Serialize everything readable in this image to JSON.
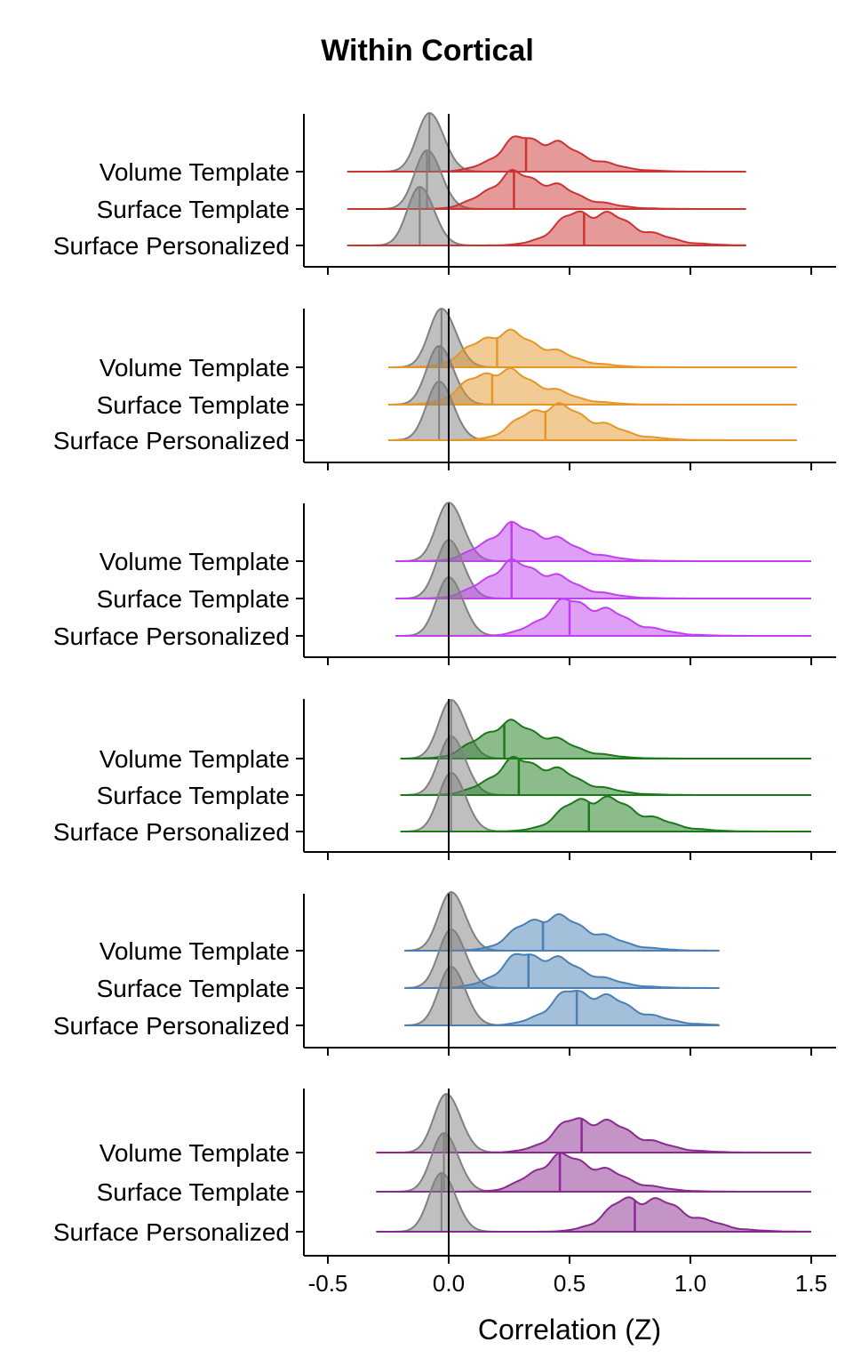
{
  "chart_data": {
    "type": "ridgeline",
    "title": "Within Cortical",
    "xlabel": "Correlation (Z)",
    "ylabel": "",
    "xlim": [
      -0.6,
      1.6
    ],
    "xticks": [
      -0.5,
      0.0,
      0.5,
      1.0,
      1.5
    ],
    "xtick_labels": [
      "-0.5",
      "0.0",
      "0.5",
      "1.0",
      "1.5"
    ],
    "row_labels": [
      "Volume Template",
      "Surface Template",
      "Surface Personalized"
    ],
    "null_color": "#808080",
    "reference_line_x": 0.0,
    "panels": [
      {
        "color": "#cc3333",
        "range": [
          -0.42,
          1.23
        ],
        "rows": [
          {
            "label": "Volume Template",
            "median": 0.32,
            "null_median": -0.08
          },
          {
            "label": "Surface Template",
            "median": 0.27,
            "null_median": -0.09
          },
          {
            "label": "Surface Personalized",
            "median": 0.56,
            "null_median": -0.12
          }
        ]
      },
      {
        "color": "#e69628",
        "range": [
          -0.25,
          1.44
        ],
        "rows": [
          {
            "label": "Volume Template",
            "median": 0.2,
            "null_median": -0.03
          },
          {
            "label": "Surface Template",
            "median": 0.18,
            "null_median": -0.04
          },
          {
            "label": "Surface Personalized",
            "median": 0.4,
            "null_median": -0.04
          }
        ]
      },
      {
        "color": "#c040f0",
        "range": [
          -0.22,
          1.5
        ],
        "rows": [
          {
            "label": "Volume Template",
            "median": 0.26,
            "null_median": 0.0
          },
          {
            "label": "Surface Template",
            "median": 0.26,
            "null_median": 0.0
          },
          {
            "label": "Surface Personalized",
            "median": 0.5,
            "null_median": 0.0
          }
        ]
      },
      {
        "color": "#1a7a1a",
        "range": [
          -0.2,
          1.5
        ],
        "rows": [
          {
            "label": "Volume Template",
            "median": 0.23,
            "null_median": 0.01
          },
          {
            "label": "Surface Template",
            "median": 0.29,
            "null_median": 0.01
          },
          {
            "label": "Surface Personalized",
            "median": 0.58,
            "null_median": 0.01
          }
        ]
      },
      {
        "color": "#4a7fb5",
        "range": [
          -0.18,
          1.12
        ],
        "rows": [
          {
            "label": "Volume Template",
            "median": 0.39,
            "null_median": 0.01
          },
          {
            "label": "Surface Template",
            "median": 0.33,
            "null_median": 0.01
          },
          {
            "label": "Surface Personalized",
            "median": 0.53,
            "null_median": 0.01
          }
        ]
      },
      {
        "color": "#8a2a90",
        "range": [
          -0.3,
          1.5
        ],
        "rows": [
          {
            "label": "Volume Template",
            "median": 0.55,
            "null_median": -0.01
          },
          {
            "label": "Surface Template",
            "median": 0.46,
            "null_median": -0.02
          },
          {
            "label": "Surface Personalized",
            "median": 0.77,
            "null_median": -0.03
          }
        ]
      }
    ]
  }
}
